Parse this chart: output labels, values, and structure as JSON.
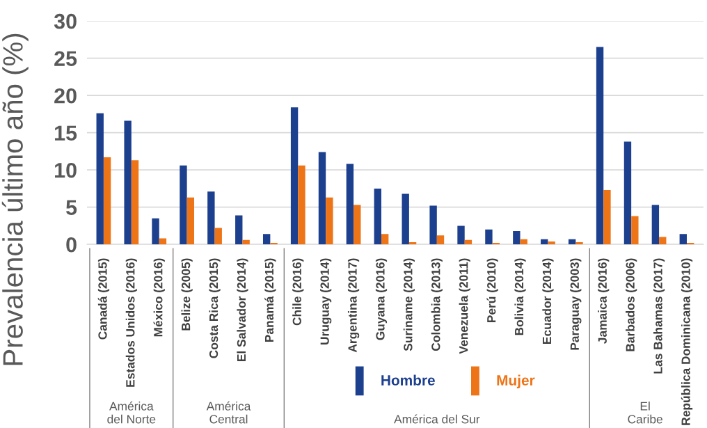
{
  "chart_data": {
    "type": "bar",
    "ylabel": "Prevalencia último año (%)",
    "categories": [
      "Canadá (2015)",
      "Estados Unidos (2016)",
      "México (2016)",
      "Belize (2005)",
      "Costa Rica (2015)",
      "El Salvador (2014)",
      "Panamá (2015)",
      "Chile (2016)",
      "Uruguay (2014)",
      "Argentina (2017)",
      "Guyana (2016)",
      "Suriname (2014)",
      "Colombia (2013)",
      "Venezuela (2011)",
      "Perú (2010)",
      "Bolivia (2014)",
      "Ecuador (2014)",
      "Paraguay (2003)",
      "Jamaica (2016)",
      "Barbados (2006)",
      "Las Bahamas (2017)",
      "República Dominicana (2010)"
    ],
    "series": [
      {
        "name": "Hombre",
        "color": "#1c3f8e",
        "values": [
          17.6,
          16.6,
          3.5,
          10.6,
          7.1,
          3.9,
          1.4,
          18.4,
          12.4,
          10.8,
          7.5,
          6.8,
          5.2,
          2.5,
          2.0,
          1.8,
          0.7,
          0.7,
          26.5,
          13.8,
          5.3,
          1.4
        ]
      },
      {
        "name": "Mujer",
        "color": "#ee7418",
        "values": [
          11.7,
          11.3,
          0.8,
          6.3,
          2.2,
          0.6,
          0.2,
          10.6,
          6.3,
          5.3,
          1.4,
          0.3,
          1.2,
          0.6,
          0.2,
          0.7,
          0.4,
          0.3,
          7.3,
          3.8,
          1.0,
          0.2
        ]
      }
    ],
    "ylim": [
      0,
      30
    ],
    "yticks": [
      0,
      5,
      10,
      15,
      20,
      25,
      30
    ],
    "grid": "y",
    "legend": "bottom",
    "annotations": [
      "América del Norte",
      "América Central",
      "América del Sur",
      "El Caribe"
    ]
  }
}
